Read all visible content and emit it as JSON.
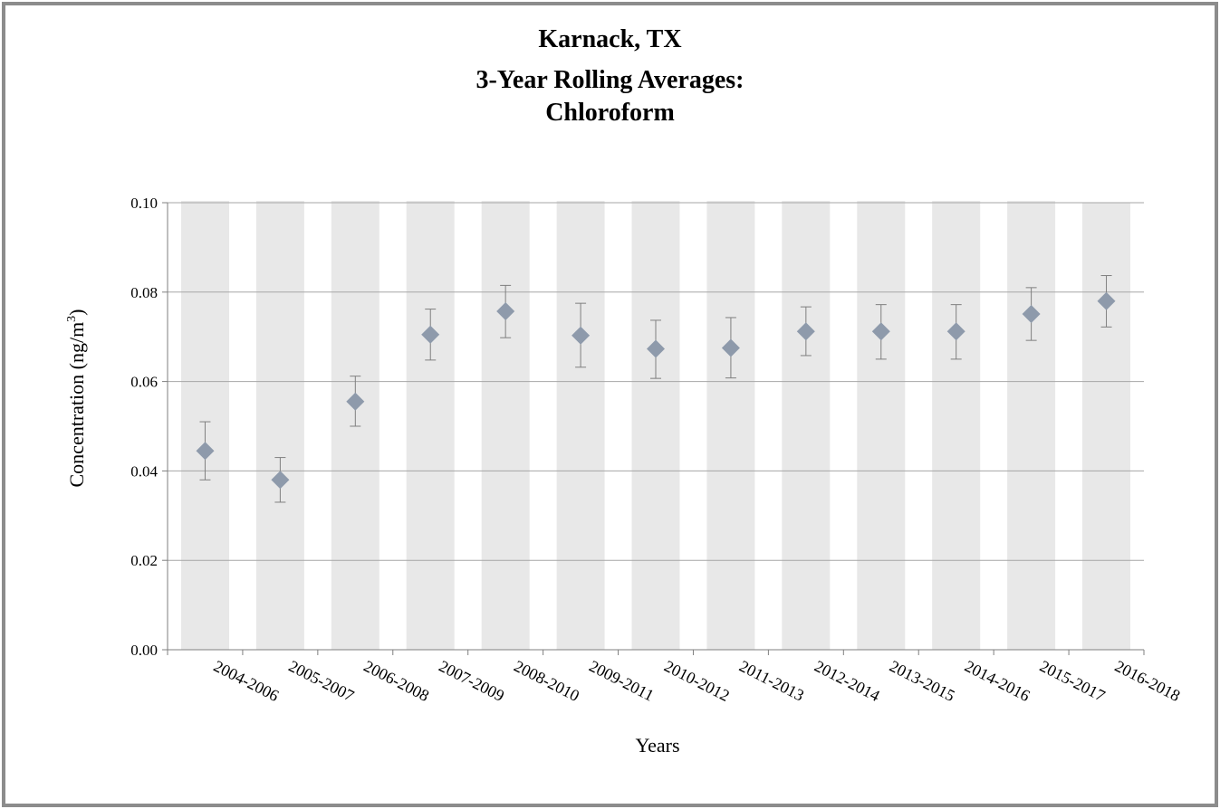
{
  "chart_data": {
    "type": "scatter",
    "title": [
      "Karnack, TX",
      "3-Year Rolling Averages:",
      "Chloroform"
    ],
    "xlabel": "Years",
    "ylabel_main": "Concentration (ng/m",
    "ylabel_sup": "3",
    "ylabel_end": ")",
    "ylim": [
      0,
      0.1
    ],
    "yticks": [
      "0.00",
      "0.02",
      "0.04",
      "0.06",
      "0.08",
      "0.10"
    ],
    "ytick_values": [
      0,
      0.02,
      0.04,
      0.06,
      0.08,
      0.1
    ],
    "grid": true,
    "categories": [
      "2004-2006",
      "2005-2007",
      "2006-2008",
      "2007-2009",
      "2008-2010",
      "2009-2011",
      "2010-2012",
      "2011-2013",
      "2012-2014",
      "2013-2015",
      "2014-2016",
      "2015-2017",
      "2016-2018"
    ],
    "background_bar_values": [
      0.1,
      0.1,
      0.1,
      0.1,
      0.1,
      0.1,
      0.1,
      0.1,
      0.1,
      0.1,
      0.1,
      0.1,
      0.0995
    ],
    "series": [
      {
        "values": [
          0.0445,
          0.038,
          0.0555,
          0.0705,
          0.0757,
          0.0703,
          0.0673,
          0.0675,
          0.0712,
          0.0712,
          0.0712,
          0.0751,
          0.078
        ],
        "error_high": [
          0.051,
          0.043,
          0.0612,
          0.0762,
          0.0815,
          0.0775,
          0.0737,
          0.0743,
          0.0767,
          0.0772,
          0.0772,
          0.081,
          0.0837
        ],
        "error_low": [
          0.038,
          0.033,
          0.05,
          0.0648,
          0.0698,
          0.0632,
          0.0607,
          0.0608,
          0.0658,
          0.065,
          0.065,
          0.0692,
          0.0722
        ]
      }
    ],
    "colors": {
      "marker": "#8e9aab",
      "background_bar": "#e8e8e8",
      "grid": "#a6a6a6",
      "error_bar": "#7f7f7f",
      "frame": "#8c8c8c"
    }
  }
}
